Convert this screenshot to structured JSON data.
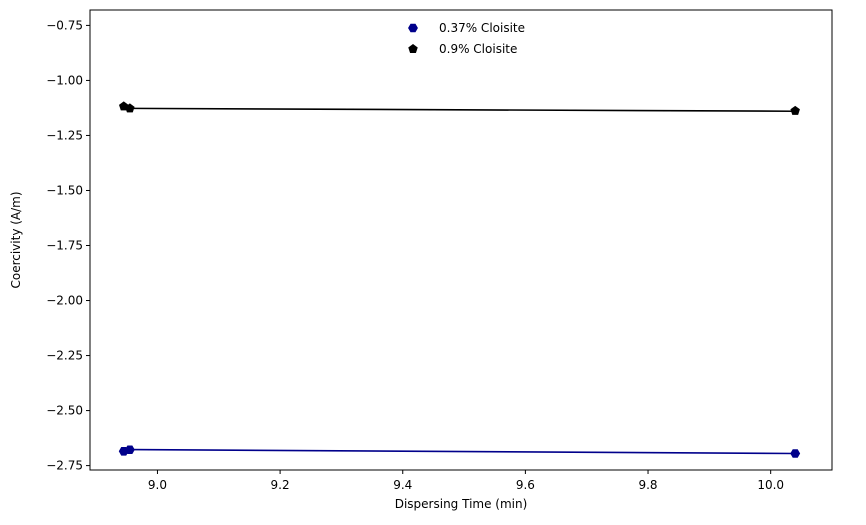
{
  "chart_data": {
    "type": "scatter",
    "title": "",
    "xlabel": "Dispersing Time (min)",
    "ylabel": "Coercivity (A/m)",
    "xlim": [
      8.89,
      10.1
    ],
    "ylim": [
      -2.77,
      -0.68
    ],
    "xticks": [
      9.0,
      9.2,
      9.4,
      9.6,
      9.8,
      10.0
    ],
    "xtick_labels": [
      "9.0",
      "9.2",
      "9.4",
      "9.6",
      "9.8",
      "10.0"
    ],
    "yticks": [
      -0.75,
      -1.0,
      -1.25,
      -1.5,
      -1.75,
      -2.0,
      -2.25,
      -2.5,
      -2.75
    ],
    "ytick_labels": [
      "−0.75",
      "−1.00",
      "−1.25",
      "−1.50",
      "−1.75",
      "−2.00",
      "−2.25",
      "−2.50",
      "−2.75"
    ],
    "grid": false,
    "legend_position": "upper-center",
    "series": [
      {
        "name": "0.37% Cloisite",
        "color": "#00008b",
        "marker": "hexagon",
        "x": [
          8.945,
          8.955,
          10.04
        ],
        "y": [
          -2.685,
          -2.678,
          -2.695
        ],
        "fit_line": {
          "x": [
            8.955,
            10.04
          ],
          "y": [
            -2.677,
            -2.695
          ]
        }
      },
      {
        "name": "0.9% Cloisite",
        "color": "#000000",
        "marker": "pentagon",
        "x": [
          8.945,
          8.955,
          10.04
        ],
        "y": [
          -1.118,
          -1.127,
          -1.138
        ],
        "fit_line": {
          "x": [
            8.955,
            10.04
          ],
          "y": [
            -1.127,
            -1.14
          ]
        }
      }
    ]
  }
}
